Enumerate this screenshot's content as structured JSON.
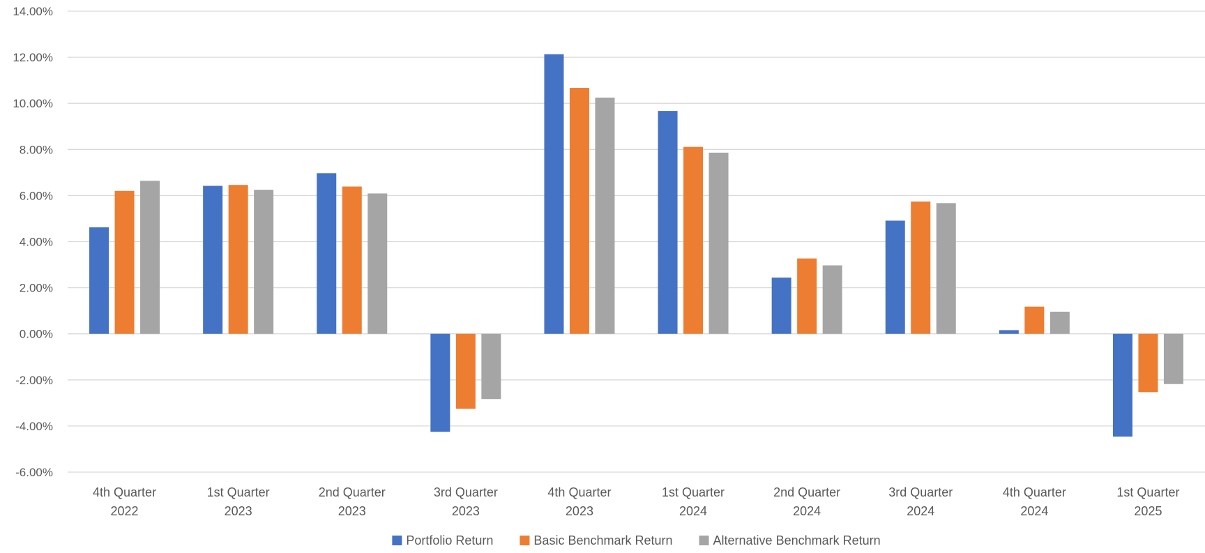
{
  "chart_data": {
    "type": "bar",
    "title": "",
    "xlabel": "",
    "ylabel": "",
    "ylim": [
      -6,
      14
    ],
    "ytick_step": 2,
    "ytick_format": "percent_2dp",
    "grid": true,
    "legend_position": "bottom",
    "categories": [
      [
        "4th Quarter",
        "2022"
      ],
      [
        "1st Quarter",
        "2023"
      ],
      [
        "2nd Quarter",
        "2023"
      ],
      [
        "3rd Quarter",
        "2023"
      ],
      [
        "4th Quarter",
        "2023"
      ],
      [
        "1st Quarter",
        "2024"
      ],
      [
        "2nd Quarter",
        "2024"
      ],
      [
        "3rd Quarter",
        "2024"
      ],
      [
        "4th Quarter",
        "2024"
      ],
      [
        "1st Quarter",
        "2025"
      ]
    ],
    "series": [
      {
        "name": "Portfolio Return",
        "color": "#4472C4",
        "values": [
          4.62,
          6.42,
          6.97,
          -4.25,
          12.13,
          9.67,
          2.44,
          4.91,
          0.16,
          -4.46
        ]
      },
      {
        "name": "Basic Benchmark Return",
        "color": "#ED7D31",
        "values": [
          6.2,
          6.46,
          6.39,
          -3.25,
          10.67,
          8.11,
          3.27,
          5.74,
          1.18,
          -2.53
        ]
      },
      {
        "name": "Alternative Benchmark Return",
        "color": "#A5A5A5",
        "values": [
          6.64,
          6.25,
          6.09,
          -2.83,
          10.25,
          7.86,
          2.97,
          5.67,
          0.96,
          -2.18
        ]
      }
    ]
  }
}
